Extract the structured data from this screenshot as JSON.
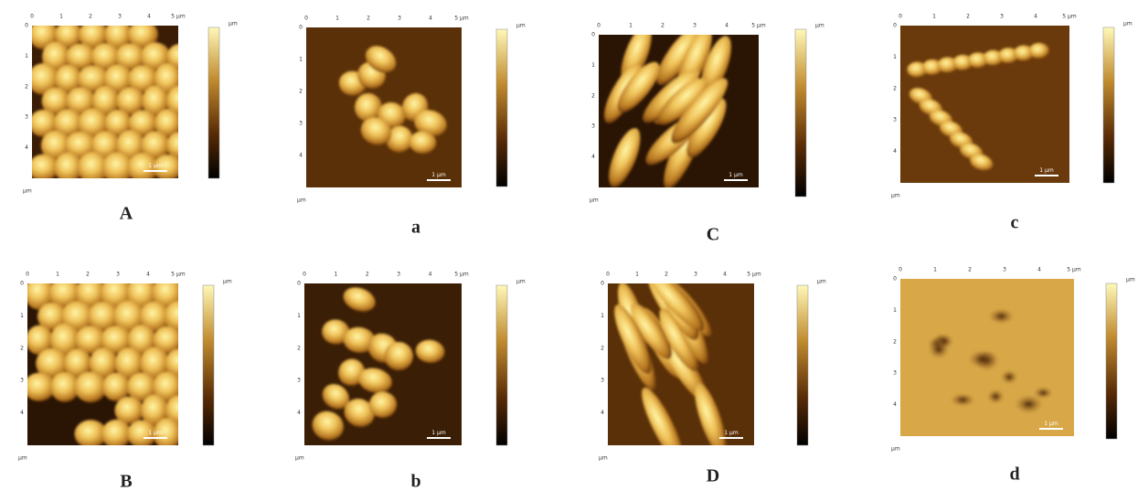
{
  "axis_ticks": [
    "0",
    "1",
    "2",
    "3",
    "4",
    "5 µm"
  ],
  "unit": "µm",
  "scale_bar": "1 µm",
  "panels": [
    {
      "label": "A"
    },
    {
      "label": "a"
    },
    {
      "label": "C"
    },
    {
      "label": "c"
    },
    {
      "label": "B"
    },
    {
      "label": "b"
    },
    {
      "label": "D"
    },
    {
      "label": "d"
    }
  ]
}
